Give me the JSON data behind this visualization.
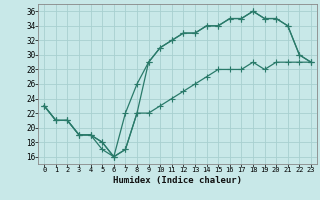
{
  "xlabel": "Humidex (Indice chaleur)",
  "bg_color": "#c8e8e8",
  "grid_color": "#a8d0d0",
  "line_color": "#2a7a6a",
  "xlim": [
    -0.5,
    23.5
  ],
  "ylim": [
    15,
    37
  ],
  "xticks": [
    0,
    1,
    2,
    3,
    4,
    5,
    6,
    7,
    8,
    9,
    10,
    11,
    12,
    13,
    14,
    15,
    16,
    17,
    18,
    19,
    20,
    21,
    22,
    23
  ],
  "yticks": [
    16,
    18,
    20,
    22,
    24,
    26,
    28,
    30,
    32,
    34,
    36
  ],
  "line1_x": [
    0,
    1,
    2,
    3,
    4,
    5,
    6,
    7,
    8,
    9,
    10,
    11,
    12,
    13,
    14,
    15,
    16,
    17,
    18,
    19,
    20,
    21,
    22,
    23
  ],
  "line1_y": [
    23,
    21,
    21,
    19,
    19,
    17,
    16,
    17,
    22,
    29,
    31,
    32,
    33,
    33,
    34,
    34,
    35,
    35,
    36,
    35,
    35,
    34,
    30,
    29
  ],
  "line2_x": [
    0,
    1,
    2,
    3,
    4,
    5,
    6,
    7,
    8,
    9,
    10,
    11,
    12,
    13,
    14,
    15,
    16,
    17,
    18,
    19,
    20,
    21,
    22,
    23
  ],
  "line2_y": [
    23,
    21,
    21,
    19,
    19,
    18,
    16,
    22,
    26,
    29,
    31,
    32,
    33,
    33,
    34,
    34,
    35,
    35,
    36,
    35,
    35,
    34,
    30,
    29
  ],
  "line3_x": [
    0,
    1,
    2,
    3,
    4,
    5,
    6,
    7,
    8,
    9,
    10,
    11,
    12,
    13,
    14,
    15,
    16,
    17,
    18,
    19,
    20,
    21,
    22,
    23
  ],
  "line3_y": [
    23,
    21,
    21,
    19,
    19,
    18,
    16,
    17,
    22,
    22,
    23,
    24,
    25,
    26,
    27,
    28,
    28,
    28,
    29,
    28,
    29,
    29,
    29,
    29
  ]
}
